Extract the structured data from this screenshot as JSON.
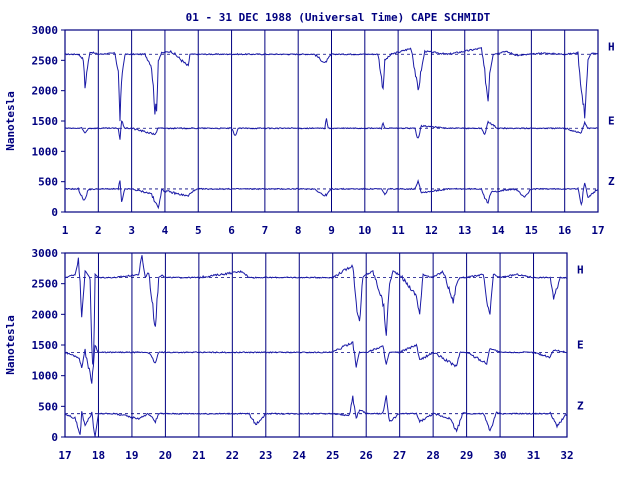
{
  "title": "01 - 31 DEC 1988 (Universal Time) CAPE SCHMIDT",
  "colors": {
    "axes": "#000080",
    "trace": "#1a1aa6",
    "baseline": "#000080",
    "background": "#ffffff"
  },
  "chart_data": [
    {
      "type": "line",
      "panel": "top",
      "ylabel": "Nanotesla",
      "ylim": [
        0,
        3000
      ],
      "yticks": [
        0,
        500,
        1000,
        1500,
        2000,
        2500,
        3000
      ],
      "xlim": [
        1,
        17
      ],
      "xticks": [
        1,
        2,
        3,
        4,
        5,
        6,
        7,
        8,
        9,
        10,
        11,
        12,
        13,
        14,
        15,
        16,
        17
      ],
      "grid": "vertical lines at each day",
      "series": [
        {
          "name": "H",
          "baseline": 2600,
          "x": [
            1.0,
            1.4,
            1.55,
            1.6,
            1.65,
            1.75,
            2.0,
            2.5,
            2.6,
            2.65,
            2.72,
            2.8,
            3.0,
            3.4,
            3.6,
            3.7,
            3.75,
            3.8,
            3.9,
            4.2,
            4.7,
            4.75,
            4.8,
            5.5,
            7.0,
            8.5,
            8.8,
            9.0,
            10.0,
            10.4,
            10.5,
            10.55,
            10.6,
            10.8,
            11.4,
            11.6,
            11.7,
            11.8,
            12.5,
            13.5,
            13.6,
            13.7,
            13.75,
            13.85,
            14.2,
            14.6,
            15.0,
            15.3,
            16.0,
            16.4,
            16.5,
            16.6,
            16.7,
            16.8,
            17.0
          ],
          "values": [
            2600,
            2600,
            2520,
            2050,
            2300,
            2640,
            2600,
            2620,
            2300,
            1550,
            2300,
            2600,
            2600,
            2600,
            2400,
            1700,
            1650,
            2500,
            2620,
            2650,
            2400,
            2600,
            2600,
            2600,
            2600,
            2600,
            2450,
            2600,
            2600,
            2600,
            2200,
            2050,
            2500,
            2600,
            2700,
            2000,
            2350,
            2650,
            2600,
            2700,
            2300,
            1850,
            2300,
            2600,
            2650,
            2580,
            2600,
            2620,
            2600,
            2620,
            2000,
            1600,
            2500,
            2620,
            2600
          ]
        },
        {
          "name": "E",
          "baseline": 1380,
          "x": [
            1.0,
            1.5,
            1.6,
            1.7,
            2.0,
            2.6,
            2.65,
            2.7,
            2.8,
            3.0,
            3.7,
            3.8,
            3.9,
            5.0,
            6.0,
            6.1,
            6.2,
            8.0,
            8.8,
            8.85,
            8.9,
            10.0,
            10.5,
            10.55,
            10.6,
            11.5,
            11.6,
            11.7,
            12.5,
            13.5,
            13.6,
            13.7,
            14.0,
            15.0,
            16.0,
            16.5,
            16.6,
            16.7,
            17.0
          ],
          "values": [
            1380,
            1380,
            1300,
            1380,
            1380,
            1380,
            1200,
            1500,
            1380,
            1380,
            1280,
            1380,
            1380,
            1380,
            1380,
            1250,
            1380,
            1380,
            1380,
            1560,
            1380,
            1380,
            1380,
            1480,
            1380,
            1380,
            1200,
            1420,
            1380,
            1380,
            1280,
            1480,
            1380,
            1380,
            1380,
            1300,
            1480,
            1380,
            1380
          ]
        },
        {
          "name": "Z",
          "baseline": 380,
          "x": [
            1.0,
            1.4,
            1.5,
            1.6,
            1.7,
            2.0,
            2.6,
            2.65,
            2.7,
            2.8,
            3.0,
            3.6,
            3.7,
            3.8,
            3.9,
            4.7,
            4.8,
            5.0,
            6.0,
            8.5,
            8.8,
            8.9,
            9.0,
            10.0,
            10.5,
            10.6,
            10.7,
            11.5,
            11.6,
            11.7,
            12.5,
            13.5,
            13.6,
            13.7,
            13.8,
            14.5,
            14.8,
            15.0,
            16.0,
            16.4,
            16.5,
            16.6,
            16.7,
            17.0
          ],
          "values": [
            380,
            380,
            250,
            200,
            370,
            380,
            380,
            520,
            150,
            380,
            380,
            300,
            150,
            80,
            360,
            260,
            330,
            380,
            380,
            380,
            260,
            320,
            380,
            380,
            380,
            280,
            380,
            380,
            520,
            320,
            380,
            380,
            250,
            150,
            330,
            380,
            250,
            380,
            380,
            380,
            100,
            500,
            250,
            380
          ]
        }
      ]
    },
    {
      "type": "line",
      "panel": "bottom",
      "ylabel": "Nanotesla",
      "ylim": [
        0,
        3000
      ],
      "yticks": [
        0,
        500,
        1000,
        1500,
        2000,
        2500,
        3000
      ],
      "xlim": [
        17,
        32
      ],
      "xticks": [
        17,
        18,
        19,
        20,
        21,
        22,
        23,
        24,
        25,
        26,
        27,
        28,
        29,
        30,
        31,
        32
      ],
      "grid": "vertical lines at each day",
      "series": [
        {
          "name": "H",
          "baseline": 2600,
          "x": [
            17.0,
            17.3,
            17.4,
            17.45,
            17.5,
            17.6,
            17.75,
            17.8,
            17.85,
            17.9,
            18.0,
            18.5,
            19.2,
            19.3,
            19.4,
            19.5,
            19.6,
            19.7,
            19.8,
            19.9,
            20.0,
            21.0,
            22.3,
            22.5,
            23.5,
            25.0,
            25.6,
            25.7,
            25.8,
            25.9,
            26.0,
            26.2,
            26.5,
            26.6,
            26.7,
            26.8,
            27.0,
            27.5,
            27.6,
            27.7,
            28.0,
            28.3,
            28.6,
            28.7,
            28.8,
            29.0,
            29.5,
            29.6,
            29.7,
            29.8,
            30.0,
            30.5,
            31.0,
            31.5,
            31.6,
            31.8,
            32.0
          ],
          "values": [
            2600,
            2650,
            2900,
            2500,
            2000,
            2700,
            2600,
            1500,
            1100,
            2650,
            2600,
            2600,
            2650,
            2950,
            2600,
            2700,
            2200,
            1800,
            2600,
            2650,
            2600,
            2600,
            2700,
            2600,
            2600,
            2600,
            2800,
            2200,
            1850,
            2600,
            2650,
            2700,
            2200,
            1700,
            2500,
            2700,
            2650,
            2300,
            2000,
            2650,
            2600,
            2700,
            2200,
            2500,
            2600,
            2600,
            2650,
            2200,
            2000,
            2650,
            2600,
            2650,
            2600,
            2600,
            2250,
            2600,
            2600
          ]
        },
        {
          "name": "E",
          "baseline": 1380,
          "x": [
            17.0,
            17.4,
            17.5,
            17.6,
            17.8,
            17.9,
            18.0,
            18.5,
            19.5,
            19.7,
            19.8,
            20.0,
            21.0,
            22.5,
            25.0,
            25.6,
            25.7,
            25.8,
            26.0,
            26.5,
            26.6,
            26.7,
            27.0,
            27.5,
            27.6,
            28.0,
            28.7,
            28.8,
            29.0,
            29.6,
            29.7,
            30.0,
            31.0,
            31.5,
            31.6,
            32.0
          ],
          "values": [
            1380,
            1300,
            1150,
            1400,
            900,
            1500,
            1380,
            1380,
            1380,
            1200,
            1380,
            1380,
            1380,
            1380,
            1380,
            1550,
            1150,
            1380,
            1380,
            1480,
            1200,
            1380,
            1380,
            1500,
            1250,
            1380,
            1150,
            1380,
            1380,
            1200,
            1450,
            1380,
            1380,
            1300,
            1420,
            1380
          ]
        },
        {
          "name": "Z",
          "baseline": 380,
          "x": [
            17.0,
            17.3,
            17.45,
            17.5,
            17.6,
            17.8,
            17.9,
            18.0,
            18.5,
            19.2,
            19.5,
            19.7,
            19.8,
            20.0,
            21.0,
            22.5,
            22.7,
            23.0,
            25.0,
            25.5,
            25.6,
            25.7,
            25.8,
            26.0,
            26.5,
            26.6,
            26.7,
            27.0,
            27.5,
            27.6,
            28.0,
            28.5,
            28.7,
            28.9,
            29.0,
            29.5,
            29.7,
            29.9,
            30.0,
            31.0,
            31.5,
            31.7,
            32.0
          ],
          "values": [
            380,
            300,
            20,
            400,
            200,
            380,
            0,
            380,
            380,
            300,
            380,
            250,
            380,
            380,
            380,
            380,
            200,
            380,
            380,
            350,
            650,
            300,
            450,
            380,
            380,
            650,
            250,
            380,
            380,
            250,
            380,
            300,
            100,
            400,
            380,
            380,
            100,
            400,
            380,
            380,
            380,
            180,
            380
          ]
        }
      ]
    }
  ]
}
